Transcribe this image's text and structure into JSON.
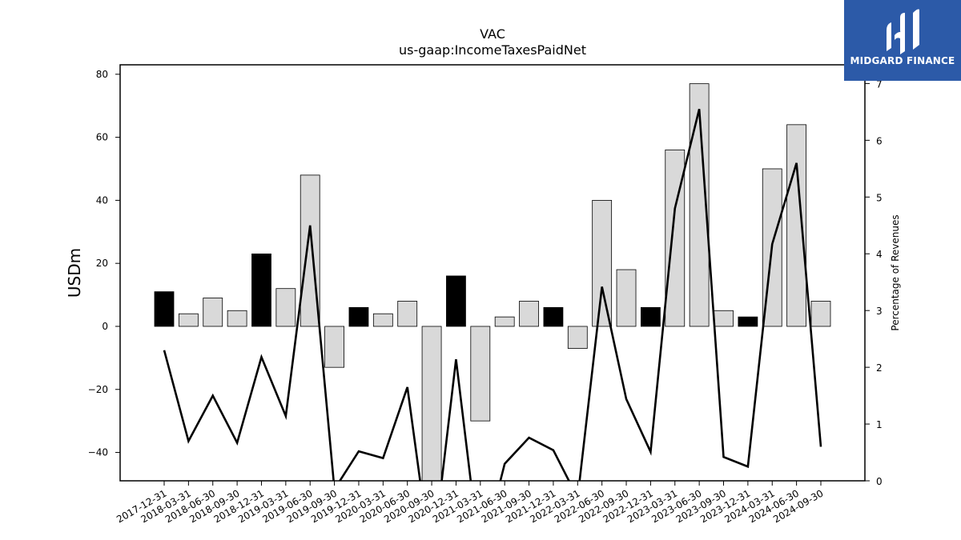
{
  "chart_data": {
    "type": "bar",
    "title": "VAC",
    "subtitle": "us-gaap:IncomeTaxesPaidNet",
    "ylabel": "USDm",
    "y2label": "Percentage of Revenues",
    "ylim": [
      -49,
      83
    ],
    "y2lim": [
      0,
      7.33
    ],
    "yticks": [
      -40,
      -20,
      0,
      20,
      40,
      60,
      80
    ],
    "y2ticks": [
      0,
      1,
      2,
      3,
      4,
      5,
      6,
      7
    ],
    "categories": [
      "2017-12-31",
      "2018-03-31",
      "2018-06-30",
      "2018-09-30",
      "2018-12-31",
      "2019-03-31",
      "2019-06-30",
      "2019-09-30",
      "2019-12-31",
      "2020-03-31",
      "2020-06-30",
      "2020-09-30",
      "2020-12-31",
      "2021-03-31",
      "2021-06-30",
      "2021-09-30",
      "2021-12-31",
      "2022-03-31",
      "2022-06-30",
      "2022-09-30",
      "2022-12-31",
      "2023-03-31",
      "2023-06-30",
      "2023-09-30",
      "2023-12-31",
      "2024-03-31",
      "2024-06-30",
      "2024-09-30"
    ],
    "series": [
      {
        "type": "bar",
        "values": [
          11,
          4,
          9,
          5,
          23,
          12,
          48,
          -13,
          6,
          4,
          8,
          -49,
          16,
          -30,
          3,
          8,
          6,
          -7,
          40,
          18,
          6,
          56,
          77,
          5,
          3,
          50,
          64,
          8
        ],
        "highlight": [
          true,
          false,
          false,
          false,
          true,
          false,
          false,
          false,
          true,
          false,
          false,
          false,
          true,
          false,
          false,
          false,
          true,
          false,
          false,
          false,
          true,
          false,
          false,
          false,
          true,
          false,
          false,
          false
        ],
        "highlight_color": "#000000",
        "color": "#d9d9d9"
      },
      {
        "type": "line",
        "axis": "right",
        "values": [
          2.3,
          0.7,
          1.5,
          0.67,
          2.18,
          1.14,
          4.5,
          -0.15,
          0.52,
          0.4,
          1.65,
          -1.5,
          2.14,
          -1.4,
          0.3,
          0.76,
          0.54,
          -0.3,
          3.42,
          1.44,
          0.51,
          4.8,
          6.55,
          0.42,
          0.25,
          4.17,
          5.6,
          0.6
        ],
        "color": "#000000"
      }
    ]
  },
  "logo": {
    "text": "MIDGARD FINANCE",
    "color": "#2c5aa8"
  }
}
